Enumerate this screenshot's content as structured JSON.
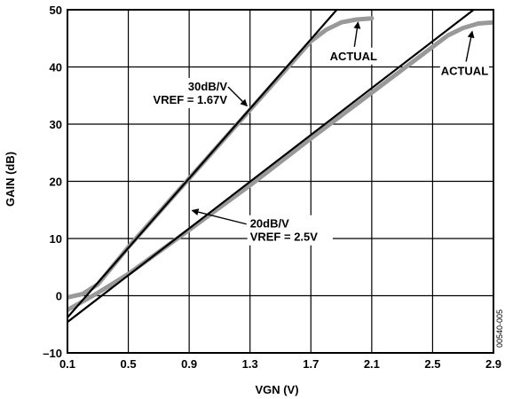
{
  "chart_data": {
    "type": "line",
    "xlabel": "VGN (V)",
    "ylabel": "GAIN (dB)",
    "xlim": [
      0.1,
      2.9
    ],
    "ylim": [
      -10,
      50
    ],
    "xticks": [
      0.1,
      0.5,
      0.9,
      1.3,
      1.7,
      2.1,
      2.5,
      2.9
    ],
    "xtick_labels": [
      "0.1",
      "0.5",
      "0.9",
      "1.3",
      "1.7",
      "2.1",
      "2.5",
      "2.9"
    ],
    "yticks": [
      -10,
      0,
      10,
      20,
      30,
      40,
      50
    ],
    "ytick_labels": [
      "–10",
      "0",
      "10",
      "20",
      "30",
      "40",
      "50"
    ],
    "grid": true,
    "figure_id": "00540-005",
    "series": [
      {
        "name": "30dB/V ideal",
        "color": "#000000",
        "x": [
          0.1,
          1.87
        ],
        "y": [
          -3.8,
          50
        ]
      },
      {
        "name": "30dB/V actual",
        "color": "#999999",
        "x": [
          0.1,
          0.2,
          0.3,
          0.5,
          0.9,
          1.3,
          1.5,
          1.7,
          1.8,
          1.9,
          2.0,
          2.1
        ],
        "y": [
          -0.3,
          0.3,
          2.0,
          8.5,
          20.5,
          32.5,
          38.5,
          44.5,
          46.5,
          47.8,
          48.3,
          48.5
        ]
      },
      {
        "name": "20dB/V ideal",
        "color": "#000000",
        "x": [
          0.1,
          2.77
        ],
        "y": [
          -4.6,
          50
        ]
      },
      {
        "name": "20dB/V actual",
        "color": "#999999",
        "x": [
          0.1,
          0.3,
          0.5,
          0.9,
          1.3,
          1.7,
          2.1,
          2.5,
          2.6,
          2.7,
          2.8,
          2.9
        ],
        "y": [
          -2.5,
          0.5,
          3.8,
          11.5,
          19.3,
          27.5,
          35.5,
          43.5,
          45.5,
          46.8,
          47.6,
          47.8
        ]
      }
    ],
    "annotations": [
      {
        "lines": [
          "ACTUAL"
        ],
        "x": 1.98,
        "y": 41.2,
        "anchor": "middle",
        "arrow_to": [
          2.01,
          47.8
        ]
      },
      {
        "lines": [
          "ACTUAL"
        ],
        "x": 2.71,
        "y": 38.6,
        "anchor": "middle",
        "arrow_to": [
          2.76,
          46.2
        ]
      },
      {
        "lines": [
          "30dB/V",
          "VREF = 1.67V"
        ],
        "x": 1.15,
        "y": 35.9,
        "anchor": "end",
        "arrow_to": [
          1.28,
          33.2
        ]
      },
      {
        "lines": [
          "20dB/V",
          "VREF = 2.5V"
        ],
        "x": 1.3,
        "y": 11.9,
        "anchor": "start",
        "arrow_to": [
          0.92,
          14.9
        ]
      }
    ]
  }
}
